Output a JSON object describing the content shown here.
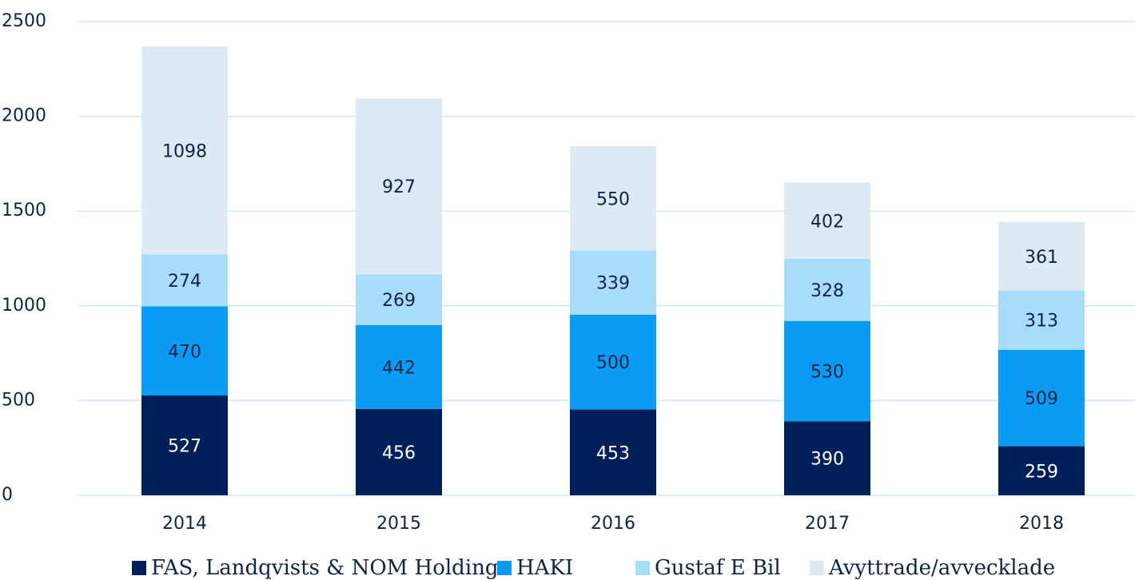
{
  "chart_data": {
    "type": "stacked_bar",
    "categories": [
      "2014",
      "2015",
      "2016",
      "2017",
      "2018"
    ],
    "series": [
      {
        "name": "FAS, Landqvists & NOM Holding",
        "color": "#00205b",
        "values": [
          527,
          456,
          453,
          390,
          259
        ]
      },
      {
        "name": "HAKI",
        "color": "#0a9cf5",
        "values": [
          470,
          442,
          500,
          530,
          509
        ]
      },
      {
        "name": "Gustaf E Bil",
        "color": "#a9dcfa",
        "values": [
          274,
          269,
          339,
          328,
          313
        ]
      },
      {
        "name": "Avyttrade/avvecklade",
        "color": "#dde9f5",
        "values": [
          1098,
          927,
          550,
          402,
          361
        ]
      }
    ],
    "ylim": [
      0,
      2500
    ],
    "yticks": [
      0,
      500,
      1000,
      1500,
      2000,
      2500
    ],
    "grid": true,
    "legend": "bottom"
  }
}
